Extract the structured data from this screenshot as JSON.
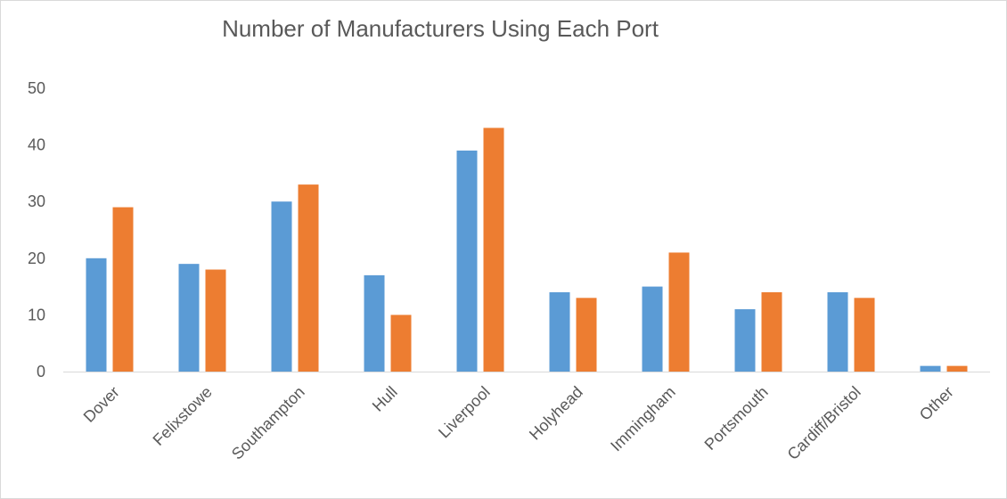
{
  "chart_data": {
    "type": "bar",
    "title": "Number of Manufacturers Using Each Port",
    "xlabel": "",
    "ylabel": "",
    "categories": [
      "Dover",
      "Felixstowe",
      "Southampton",
      "Hull",
      "Liverpool",
      "Holyhead",
      "Immingham",
      "Portsmouth",
      "Cardiff/Bristol",
      "Other"
    ],
    "series": [
      {
        "color": "#5b9bd5",
        "values": [
          20,
          19,
          30,
          17,
          39,
          14,
          15,
          11,
          14,
          1
        ]
      },
      {
        "color": "#ed7d31",
        "values": [
          29,
          18,
          33,
          10,
          43,
          13,
          21,
          14,
          13,
          1
        ]
      }
    ],
    "ylim": [
      0,
      50
    ],
    "yticks": [
      0,
      10,
      20,
      30,
      40,
      50
    ],
    "grid": false,
    "legend": "none"
  }
}
